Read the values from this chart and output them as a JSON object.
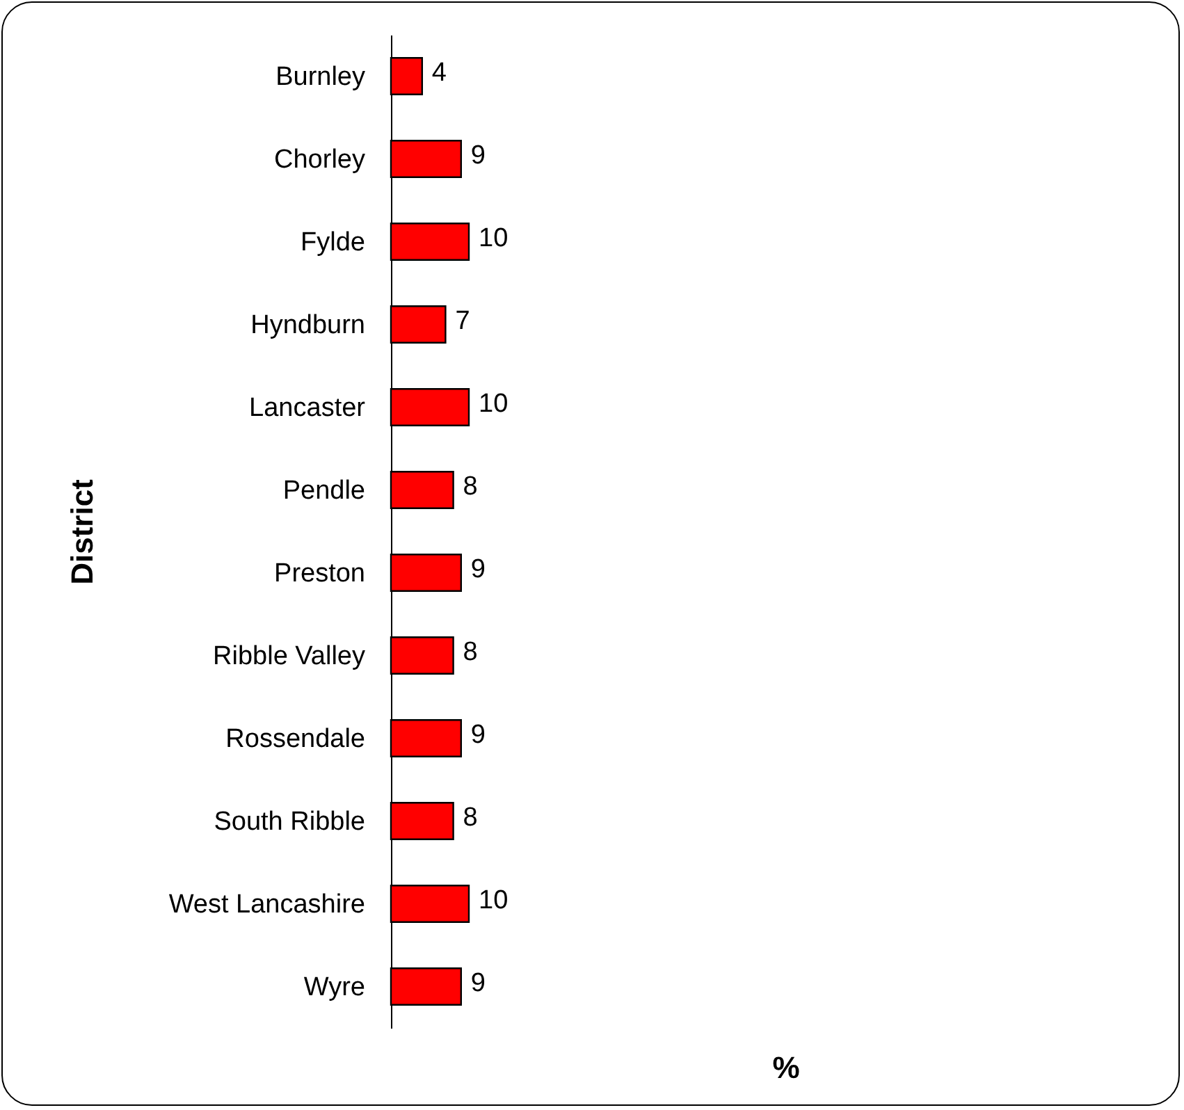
{
  "chart_data": {
    "type": "bar",
    "orientation": "horizontal",
    "annotations": [
      "%"
    ],
    "ylabel": "District",
    "categories": [
      "Burnley",
      "Chorley",
      "Fylde",
      "Hyndburn",
      "Lancaster",
      "Pendle",
      "Preston",
      "Ribble Valley",
      "Rossendale",
      "South Ribble",
      "West Lancashire",
      "Wyre"
    ],
    "values": [
      4,
      9,
      10,
      7,
      10,
      8,
      9,
      8,
      9,
      8,
      10,
      9
    ],
    "color": "#ff0000",
    "data_labels": true,
    "tick_labels": "y"
  }
}
